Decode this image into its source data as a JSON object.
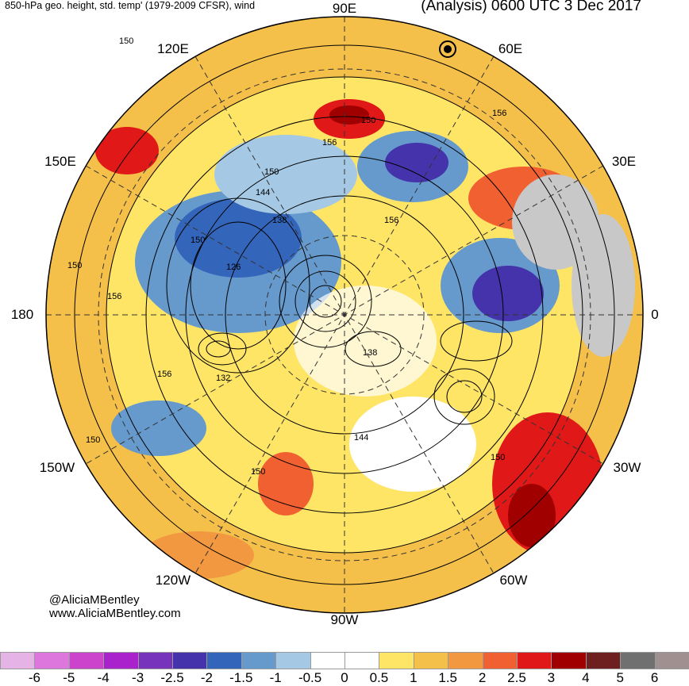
{
  "header": {
    "title_left": "850-hPa geo. height, std. temp' (1979-2009 CFSR), wind",
    "title_right": "(Analysis) 0600 UTC 3 Dec 2017"
  },
  "longitude_labels": {
    "e90": "90E",
    "e60": "60E",
    "e120": "120E",
    "e150": "150E",
    "e30": "30E",
    "w180": "180",
    "zero": "0",
    "w150": "150W",
    "w30": "30W",
    "w120": "120W",
    "w60": "60W",
    "w90": "90W"
  },
  "contour_labels": [
    "150",
    "150",
    "156",
    "156",
    "150",
    "144",
    "138",
    "156",
    "150",
    "126",
    "150",
    "156",
    "156",
    "132",
    "138",
    "150",
    "144",
    "150",
    "150"
  ],
  "credit": {
    "line1": "@AliciaMBentley",
    "line2": "www.AliciaMBentley.com"
  },
  "colorbar": {
    "colors": [
      "#e6b3e6",
      "#dd77dd",
      "#cc44cc",
      "#aa22cc",
      "#7733bb",
      "#4433aa",
      "#3366bb",
      "#6699cc",
      "#a5c8e4",
      "#ffffff",
      "#ffffff",
      "#ffe566",
      "#f5c04a",
      "#f29840",
      "#f06030",
      "#e01818",
      "#a00000",
      "#6e2020",
      "#707070",
      "#a09090"
    ],
    "ticks": [
      "-6",
      "-5",
      "-4",
      "-3",
      "-2.5",
      "-2",
      "-1.5",
      "-1",
      "-0.5",
      "0",
      "0.5",
      "1",
      "1.5",
      "2",
      "2.5",
      "3",
      "4",
      "5",
      "6"
    ]
  }
}
